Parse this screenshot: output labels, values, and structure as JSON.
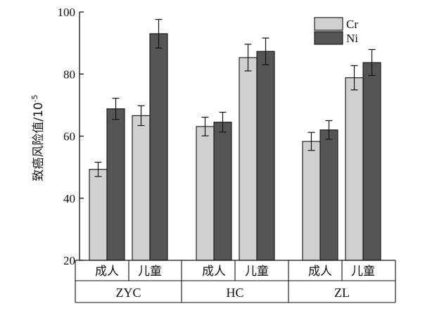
{
  "chart_data": {
    "type": "bar",
    "ylabel": "致癌风险值/10",
    "ylabel_superscript": "-5",
    "ylim": [
      20,
      100
    ],
    "yticks": [
      "20",
      "40",
      "60",
      "80",
      "100"
    ],
    "groups": [
      "ZYC",
      "HC",
      "ZL"
    ],
    "subcategories": [
      "成人",
      "儿童"
    ],
    "series": [
      {
        "name": "Cr",
        "color": "#d0d0d0",
        "values": [
          49.3,
          66.6,
          63.1,
          85.3,
          58.3,
          78.8
        ],
        "errors": [
          2.3,
          3.2,
          3.0,
          4.3,
          2.9,
          3.9
        ]
      },
      {
        "name": "Ni",
        "color": "#555555",
        "values": [
          68.8,
          93.0,
          64.5,
          87.3,
          62.0,
          83.7
        ],
        "errors": [
          3.4,
          4.6,
          3.2,
          4.3,
          3.0,
          4.2
        ]
      }
    ],
    "legend_position": "top-right",
    "grid": false
  }
}
